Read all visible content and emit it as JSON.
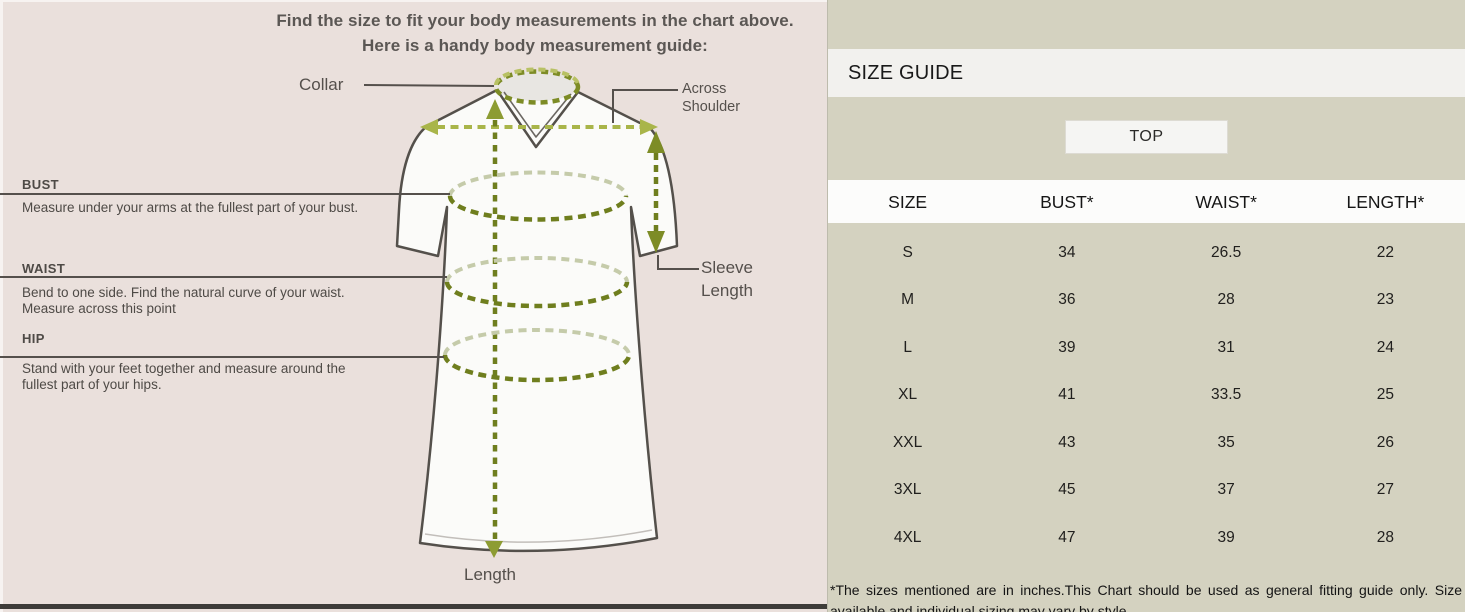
{
  "left_panel": {
    "title_line1": "Find the size to fit your body measurements in the chart above.",
    "title_line2": "Here is a handy body measurement guide:",
    "collar_label": "Collar",
    "across_shoulder_label": "Across\nShoulder",
    "sleeve_length_label": "Sleeve\nLength",
    "length_label": "Length",
    "sections": {
      "bust": {
        "title": "BUST",
        "desc": "Measure under your arms at the fullest part of your bust."
      },
      "waist": {
        "title": "WAIST",
        "desc": "Bend to one side. Find the natural curve of your waist.\nMeasure across this point"
      },
      "hip": {
        "title": "HIP",
        "desc": "Stand with your feet together and measure around the\nfullest part of your hips."
      }
    }
  },
  "right_panel": {
    "header": "SIZE GUIDE",
    "category_button": "TOP",
    "table": {
      "columns": [
        "SIZE",
        "BUST*",
        "WAIST*",
        "LENGTH*"
      ],
      "rows": [
        [
          "S",
          "34",
          "26.5",
          "22"
        ],
        [
          "M",
          "36",
          "28",
          "23"
        ],
        [
          "L",
          "39",
          "31",
          "24"
        ],
        [
          "XL",
          "41",
          "33.5",
          "25"
        ],
        [
          "XXL",
          "43",
          "35",
          "26"
        ],
        [
          "3XL",
          "45",
          "37",
          "27"
        ],
        [
          "4XL",
          "47",
          "39",
          "28"
        ]
      ]
    },
    "footnote": "*The sizes mentioned are in inches.This Chart should be used as general fitting guide only. Size available and individual sizing may vary by style."
  },
  "colors": {
    "left_panel_bg": "#eae0dc",
    "right_panel_bg": "#d4d2c0",
    "band_bg": "#f2f1ee",
    "table_header_bg": "#fcfcfb",
    "button_bg": "#f5f5f3",
    "garment_outline": "#54504b",
    "measure_green_dark": "#6f7e1e",
    "measure_green_light": "#a9b54a",
    "text_dark": "#1a1a1a",
    "text_muted": "#55504c"
  }
}
